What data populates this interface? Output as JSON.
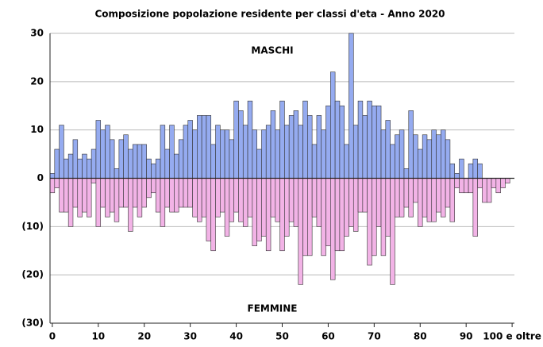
{
  "chart_data": {
    "type": "bar",
    "title": "Composizione popolazione residente per classi d'eta - Anno 2020",
    "categories": [
      "0",
      null,
      null,
      null,
      null,
      null,
      null,
      null,
      null,
      null,
      "10",
      null,
      null,
      null,
      null,
      null,
      null,
      null,
      null,
      null,
      "20",
      null,
      null,
      null,
      null,
      null,
      null,
      null,
      null,
      null,
      "30",
      null,
      null,
      null,
      null,
      null,
      null,
      null,
      null,
      null,
      "40",
      null,
      null,
      null,
      null,
      null,
      null,
      null,
      null,
      null,
      "50",
      null,
      null,
      null,
      null,
      null,
      null,
      null,
      null,
      null,
      "60",
      null,
      null,
      null,
      null,
      null,
      null,
      null,
      null,
      null,
      "70",
      null,
      null,
      null,
      null,
      null,
      null,
      null,
      null,
      null,
      "80",
      null,
      null,
      null,
      null,
      null,
      null,
      null,
      null,
      null,
      "90",
      null,
      null,
      null,
      null,
      null,
      null,
      null,
      null,
      null,
      "100 e oltre"
    ],
    "series": [
      {
        "name": "MASCHI",
        "color": "#95abf0",
        "values": [
          1,
          6,
          11,
          4,
          5,
          8,
          4,
          5,
          4,
          6,
          12,
          10,
          11,
          8,
          2,
          8,
          9,
          6,
          7,
          7,
          7,
          4,
          3,
          4,
          11,
          6,
          11,
          5,
          8,
          11,
          12,
          10,
          13,
          13,
          13,
          7,
          11,
          10,
          10,
          8,
          16,
          14,
          11,
          16,
          10,
          6,
          10,
          11,
          14,
          10,
          16,
          11,
          13,
          14,
          11,
          16,
          13,
          7,
          13,
          10,
          15,
          22,
          16,
          15,
          7,
          30,
          11,
          16,
          13,
          16,
          15,
          15,
          10,
          12,
          7,
          9,
          10,
          2,
          14,
          9,
          6,
          9,
          8,
          10,
          9,
          10,
          8,
          3,
          1,
          4,
          0,
          3,
          4,
          3,
          0,
          0,
          0,
          0,
          0,
          0,
          0
        ]
      },
      {
        "name": "FEMMINE",
        "color": "#f2b3e6",
        "values": [
          -3,
          -2,
          -7,
          -7,
          -10,
          -6,
          -8,
          -7,
          -8,
          -1,
          -10,
          -6,
          -8,
          -7,
          -9,
          -6,
          -6,
          -11,
          -6,
          -8,
          -6,
          -4,
          -3,
          -7,
          -10,
          -6,
          -7,
          -7,
          -6,
          -6,
          -6,
          -8,
          -9,
          -8,
          -13,
          -15,
          -8,
          -7,
          -12,
          -9,
          -7,
          -9,
          -10,
          -8,
          -14,
          -13,
          -12,
          -15,
          -8,
          -9,
          -15,
          -12,
          -9,
          -10,
          -22,
          -16,
          -16,
          -8,
          -10,
          -16,
          -14,
          -21,
          -15,
          -15,
          -12,
          -10,
          -11,
          -7,
          -7,
          -18,
          -16,
          -10,
          -16,
          -12,
          -22,
          -8,
          -8,
          -6,
          -8,
          -5,
          -10,
          -8,
          -9,
          -9,
          -7,
          -8,
          -6,
          -9,
          -2,
          -3,
          -3,
          -3,
          -12,
          -2,
          -5,
          -5,
          -2,
          -3,
          -2,
          -1,
          0
        ]
      }
    ],
    "ylim": [
      -30,
      30
    ],
    "yticks": [
      {
        "value": -30,
        "label": "(30)"
      },
      {
        "value": -20,
        "label": "(20)"
      },
      {
        "value": -10,
        "label": "(10)"
      },
      0,
      10,
      20,
      30
    ],
    "grid": true
  }
}
